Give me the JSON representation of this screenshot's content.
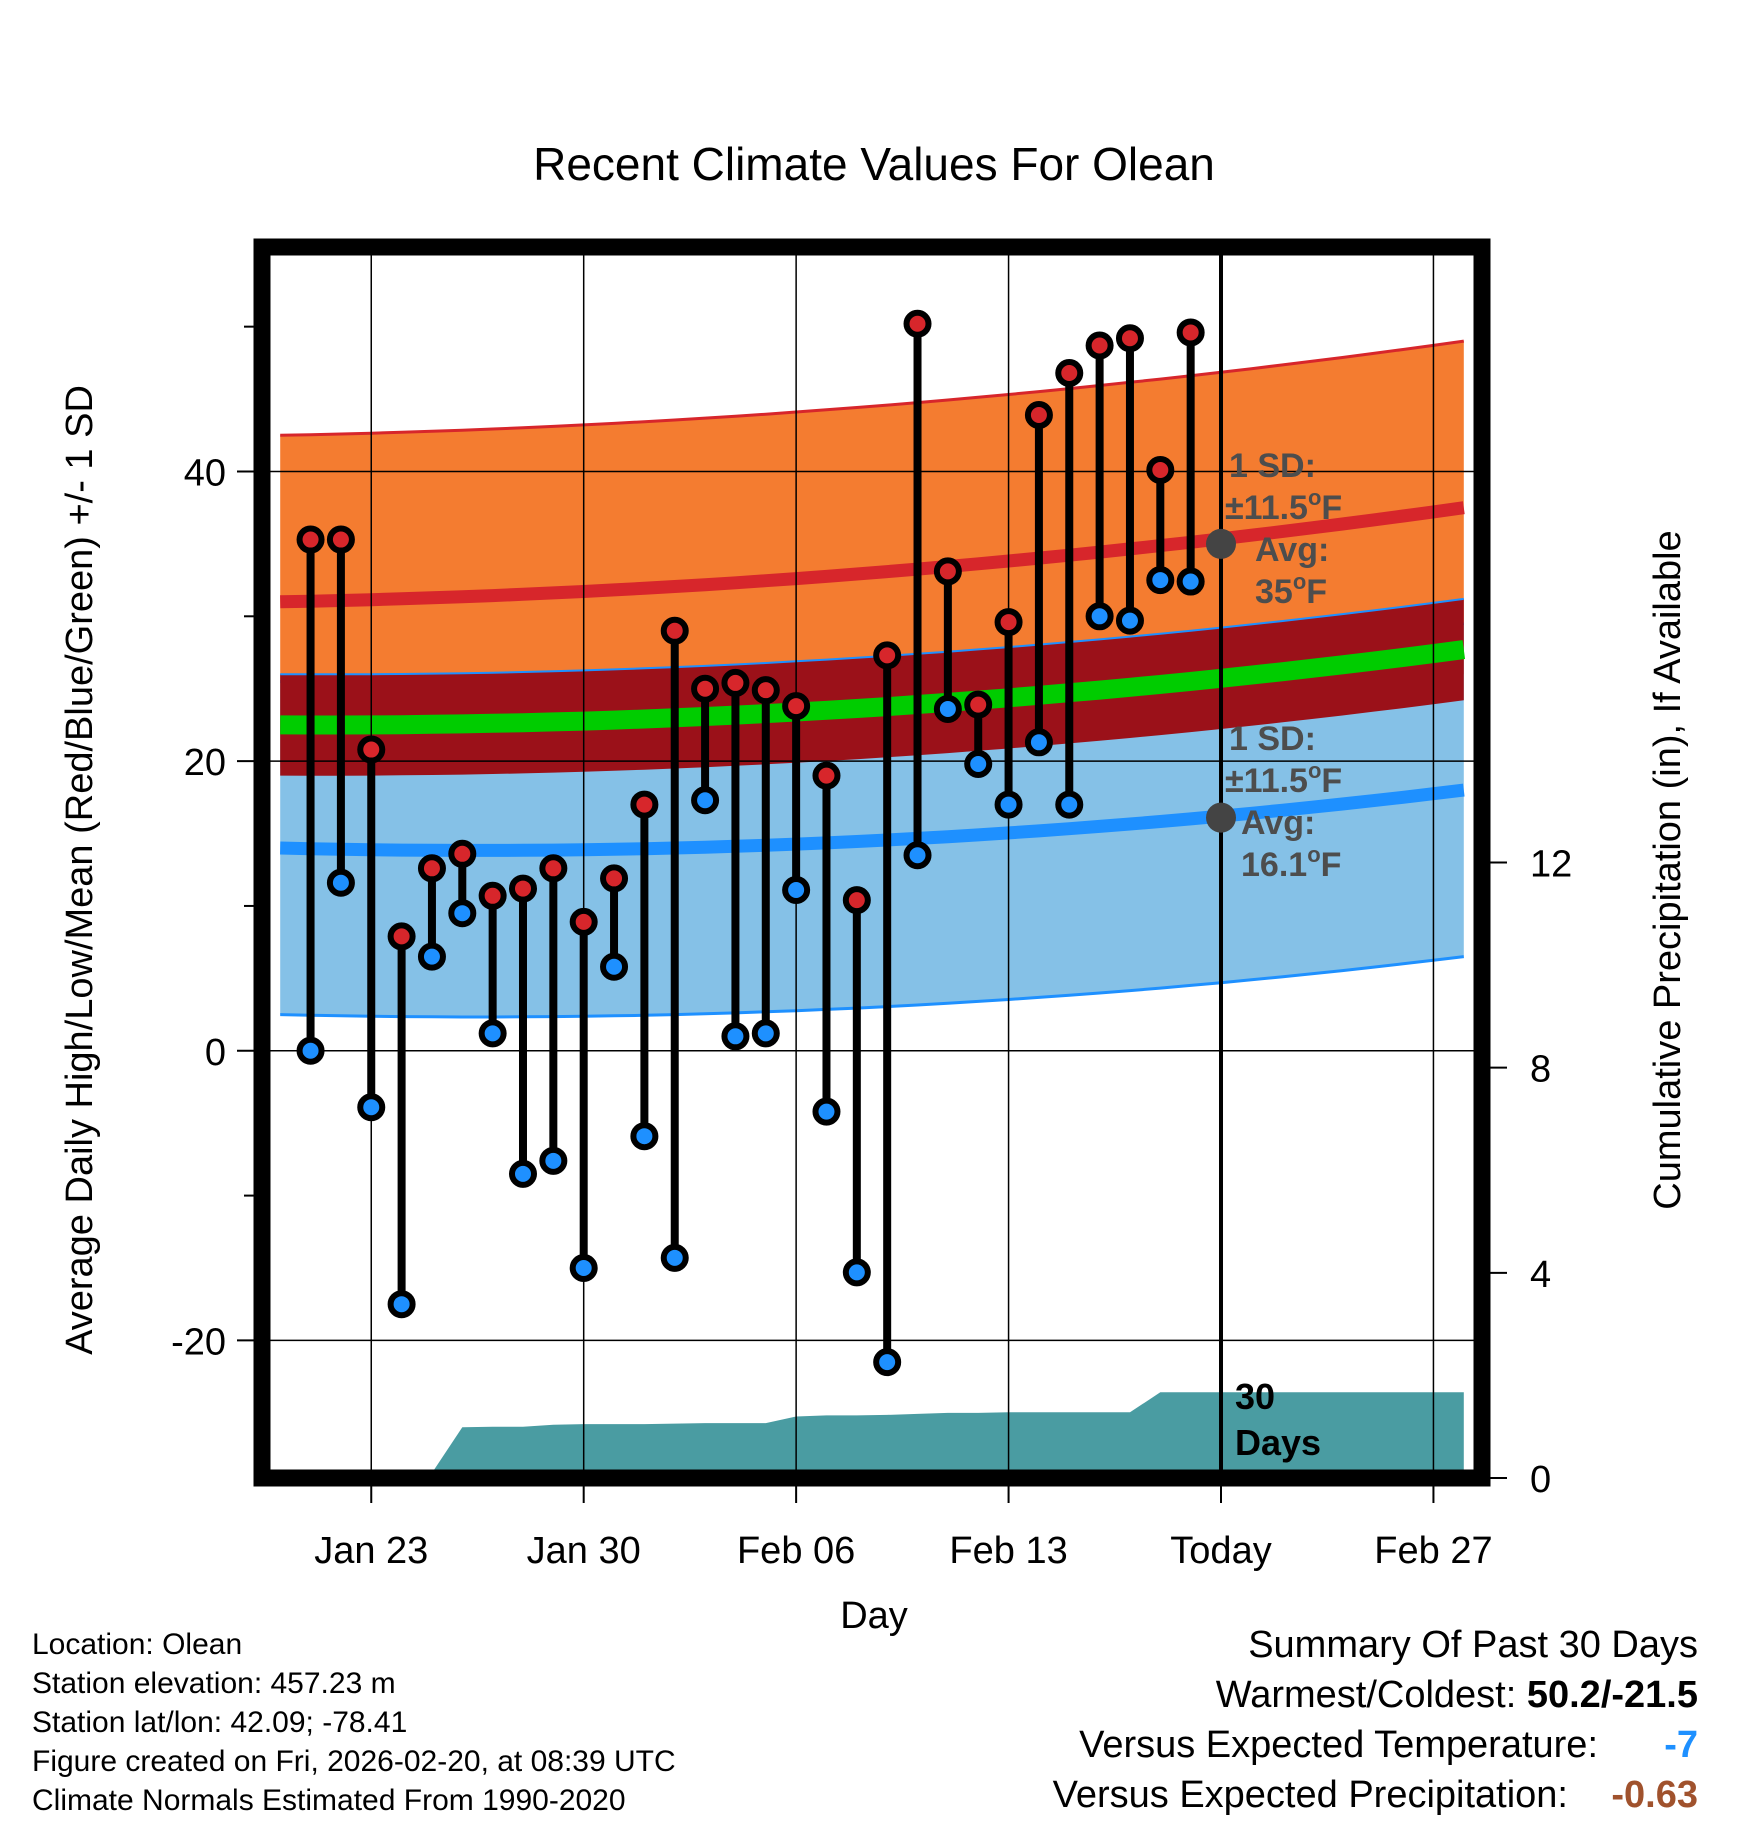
{
  "chart_data": {
    "type": "line",
    "title": "Recent Climate Values For Olean",
    "xlabel": "Day",
    "ylabel": "Average Daily High/Low/Mean (Red/Blue/Green) +/- 1 SD",
    "y2label": "Cumulative Precipitation (in), If Available",
    "ylim": [
      -29.5,
      55.5
    ],
    "y_ticks": [
      -20,
      0,
      20,
      40
    ],
    "y_tick_labels": [
      "-20",
      "0",
      "20",
      "40"
    ],
    "y2lim": [
      0,
      24
    ],
    "y2_ticks": [
      0,
      4,
      8,
      12
    ],
    "y2_tick_labels": [
      "0",
      "4",
      "8",
      "12"
    ],
    "xlim": [
      -0.6,
      39.6
    ],
    "x_tick_positions": [
      3,
      10,
      17,
      24,
      31,
      38
    ],
    "x_tick_labels": [
      "Jan 23",
      "Jan 30",
      "Feb 06",
      "Feb 13",
      "Today",
      "Feb 27"
    ],
    "today_index": 31,
    "today_label": "30\nDays",
    "days": [
      1,
      2,
      3,
      4,
      5,
      6,
      7,
      8,
      9,
      10,
      11,
      12,
      13,
      14,
      15,
      16,
      17,
      18,
      19,
      20,
      21,
      22,
      23,
      24,
      25,
      26,
      27,
      28,
      29,
      30
    ],
    "daily_high": [
      35.3,
      35.3,
      20.8,
      7.9,
      12.6,
      13.6,
      10.7,
      11.2,
      12.6,
      8.9,
      11.9,
      17.0,
      29.0,
      25.0,
      25.4,
      24.9,
      23.8,
      19.0,
      10.4,
      27.3,
      50.2,
      33.1,
      23.9,
      29.6,
      43.9,
      46.8,
      48.7,
      49.2,
      40.1,
      49.6
    ],
    "daily_low": [
      0.0,
      11.6,
      -3.9,
      -17.5,
      6.5,
      9.5,
      1.2,
      -8.5,
      -7.6,
      -15.0,
      5.8,
      -5.9,
      -14.3,
      17.3,
      1.0,
      1.2,
      11.1,
      -4.2,
      -15.3,
      -21.5,
      13.5,
      23.6,
      19.8,
      17.0,
      21.3,
      17.0,
      30.0,
      29.7,
      32.5,
      32.4
    ],
    "normal_high": {
      "start": 31.0,
      "mid": 33.0,
      "end": 37.5
    },
    "normal_high_sd": 11.5,
    "normal_low": {
      "start": 14.0,
      "mid": 14.5,
      "end": 18.0
    },
    "normal_low_sd": 11.5,
    "normal_mean": {
      "start": 22.5,
      "mid": 23.7,
      "end": 27.7
    },
    "normal_mean_sd": 3.5,
    "precip_cumulative": [
      0,
      0,
      0,
      0,
      0,
      0.1,
      0.99,
      1.0,
      1.0,
      1.04,
      1.05,
      1.05,
      1.05,
      1.06,
      1.07,
      1.07,
      1.07,
      1.2,
      1.22,
      1.22,
      1.23,
      1.25,
      1.27,
      1.27,
      1.28,
      1.28,
      1.28,
      1.28,
      1.28,
      1.67,
      1.67,
      1.67,
      1.67,
      1.67,
      1.67,
      1.67,
      1.67,
      1.67,
      1.67,
      1.67
    ],
    "annotations": {
      "high": {
        "sd_label": "1 SD:",
        "sd_value": "±11.5",
        "deg": "o",
        "unit": "F",
        "avg_label": "Avg:",
        "avg_value": "35",
        "marker_value": 35.0
      },
      "low": {
        "sd_label": "1 SD:",
        "sd_value": "±11.5",
        "deg": "o",
        "unit": "F",
        "avg_label": "Avg:",
        "avg_value": "16.1",
        "marker_value": 16.1
      }
    },
    "colors": {
      "high_band": "#f47c30",
      "high_line": "#d7262b",
      "mean_band": "#9b1119",
      "mean_line": "#00cc00",
      "low_band": "#85c1e7",
      "low_line": "#1e90ff",
      "precip": "#4a9ca2",
      "high_marker": "#d7262b",
      "low_marker": "#1e90ff",
      "annotation": "#4d4d4d",
      "marker_gray": "#444444"
    }
  },
  "footer": {
    "location": "Location: Olean",
    "elevation": "Station elevation: 457.23 m",
    "latlon": "Station lat/lon: 42.09; -78.41",
    "created": "Figure created on Fri, 2026-02-20, at 08:39 UTC",
    "normals": "Climate Normals Estimated From 1990-2020"
  },
  "summary": {
    "title": "Summary Of Past 30 Days",
    "warm_cold_label": "Warmest/Coldest:",
    "warm_cold_value": "50.2/-21.5",
    "temp_label": "Versus Expected Temperature:",
    "temp_value": "-7",
    "temp_color": "#1e90ff",
    "precip_label": "Versus Expected Precipitation:",
    "precip_value": "-0.63",
    "precip_color": "#a0522d"
  }
}
